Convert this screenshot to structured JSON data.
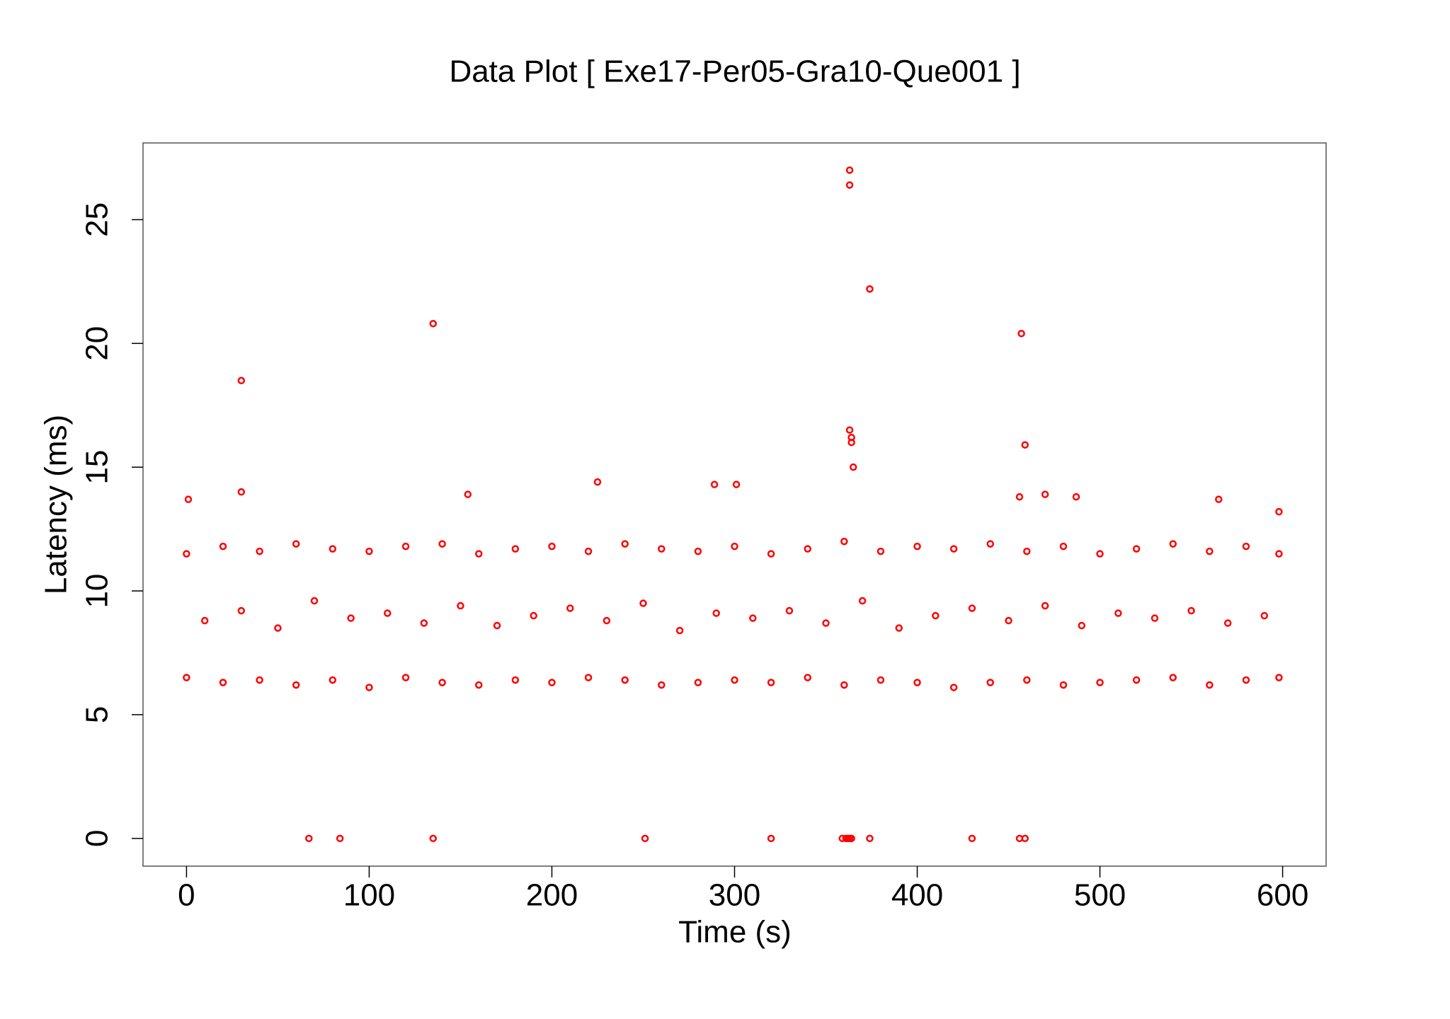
{
  "chart_data": {
    "type": "scatter",
    "title": "Data Plot [ Exe17-Per05-Gra10-Que001 ]",
    "x_label": "Time (s)",
    "y_label": "Latency (ms)",
    "color": "#ff0000",
    "xlim": [
      -23.8,
      623.8
    ],
    "ylim": [
      -1.12,
      28.1
    ],
    "xticks": [
      0,
      100,
      200,
      300,
      400,
      500,
      600
    ],
    "yticks": [
      0,
      5,
      10,
      15,
      20,
      25
    ],
    "x": [
      0,
      20,
      40,
      60,
      80,
      100,
      120,
      140,
      160,
      180,
      200,
      220,
      240,
      260,
      280,
      300,
      320,
      340,
      360,
      380,
      400,
      420,
      440,
      460,
      480,
      500,
      520,
      540,
      560,
      580,
      598,
      10,
      30,
      50,
      70,
      90,
      110,
      130,
      150,
      170,
      190,
      210,
      230,
      250,
      270,
      290,
      310,
      330,
      350,
      370,
      390,
      410,
      430,
      450,
      470,
      490,
      510,
      530,
      550,
      570,
      590,
      0,
      20,
      40,
      60,
      80,
      100,
      120,
      140,
      160,
      180,
      200,
      220,
      240,
      260,
      280,
      300,
      320,
      340,
      360,
      380,
      400,
      420,
      440,
      460,
      480,
      500,
      520,
      540,
      560,
      580,
      598,
      30,
      135,
      363,
      363,
      374,
      457,
      459,
      363,
      364,
      364,
      365,
      1,
      30,
      154,
      225,
      289,
      301,
      470,
      456,
      487,
      565,
      598,
      67,
      84,
      135,
      251,
      320,
      359,
      361,
      362,
      363,
      364,
      374,
      430,
      456,
      459
    ],
    "values": [
      6.5,
      6.3,
      6.4,
      6.2,
      6.4,
      6.1,
      6.5,
      6.3,
      6.2,
      6.4,
      6.3,
      6.5,
      6.4,
      6.2,
      6.3,
      6.4,
      6.3,
      6.5,
      6.2,
      6.4,
      6.3,
      6.1,
      6.3,
      6.4,
      6.2,
      6.3,
      6.4,
      6.5,
      6.2,
      6.4,
      6.5,
      8.8,
      9.2,
      8.5,
      9.6,
      8.9,
      9.1,
      8.7,
      9.4,
      8.6,
      9.0,
      9.3,
      8.8,
      9.5,
      8.4,
      9.1,
      8.9,
      9.2,
      8.7,
      9.6,
      8.5,
      9.0,
      9.3,
      8.8,
      9.4,
      8.6,
      9.1,
      8.9,
      9.2,
      8.7,
      9.0,
      11.5,
      11.8,
      11.6,
      11.9,
      11.7,
      11.6,
      11.8,
      11.9,
      11.5,
      11.7,
      11.8,
      11.6,
      11.9,
      11.7,
      11.6,
      11.8,
      11.5,
      11.7,
      12.0,
      11.6,
      11.8,
      11.7,
      11.9,
      11.6,
      11.8,
      11.5,
      11.7,
      11.9,
      11.6,
      11.8,
      11.5,
      18.5,
      20.8,
      27,
      26.4,
      22.2,
      20.4,
      15.9,
      16.5,
      16.2,
      16,
      15,
      13.7,
      14,
      13.9,
      14.4,
      14.3,
      14.3,
      13.9,
      13.8,
      13.8,
      13.7,
      13.2,
      0,
      0,
      0,
      0,
      0,
      0,
      0,
      0,
      0,
      0,
      0,
      0,
      0,
      0
    ]
  }
}
